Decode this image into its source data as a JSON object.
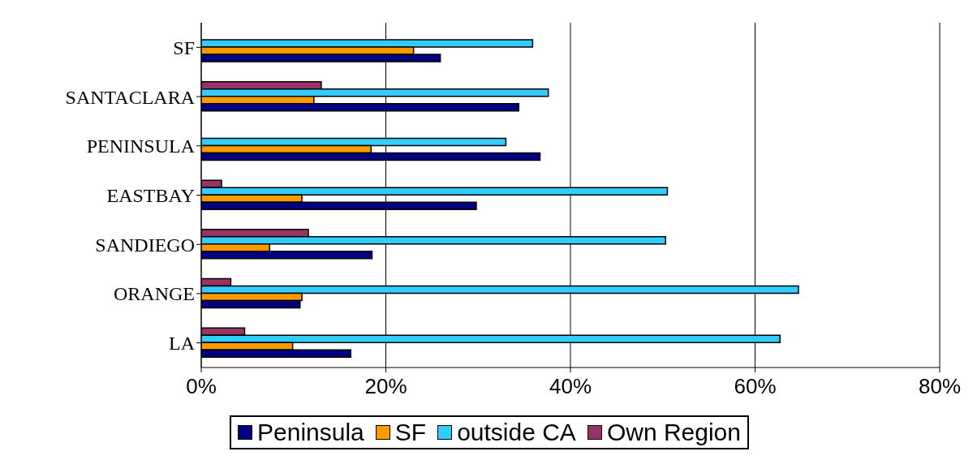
{
  "chart_data": {
    "type": "bar",
    "orientation": "horizontal",
    "categories": [
      "SF",
      "SANTACLARA",
      "PENINSULA",
      "EASTBAY",
      "SANDIEGO",
      "ORANGE",
      "LA"
    ],
    "series": [
      {
        "name": "Peninsula",
        "color": "#000080",
        "values": [
          25.9,
          34.4,
          36.7,
          29.8,
          18.5,
          10.7,
          16.2
        ]
      },
      {
        "name": "SF",
        "color": "#ff9900",
        "values": [
          23,
          12.2,
          18.4,
          10.9,
          7.4,
          10.9,
          9.9
        ]
      },
      {
        "name": "outside CA",
        "color": "#33ccff",
        "values": [
          35.9,
          37.6,
          33,
          50.5,
          50.3,
          64.7,
          62.7
        ]
      },
      {
        "name": "Own Region",
        "color": "#993366",
        "values": [
          null,
          13,
          null,
          2.2,
          11.6,
          3.2,
          4.7
        ]
      }
    ],
    "xlim": [
      0,
      80
    ],
    "xticks": [
      {
        "value": 0,
        "label": "0%"
      },
      {
        "value": 20,
        "label": "20%"
      },
      {
        "value": 40,
        "label": "40%"
      },
      {
        "value": 60,
        "label": "60%"
      },
      {
        "value": 80,
        "label": "80%"
      }
    ],
    "grid": "x",
    "legend": "bottom"
  }
}
